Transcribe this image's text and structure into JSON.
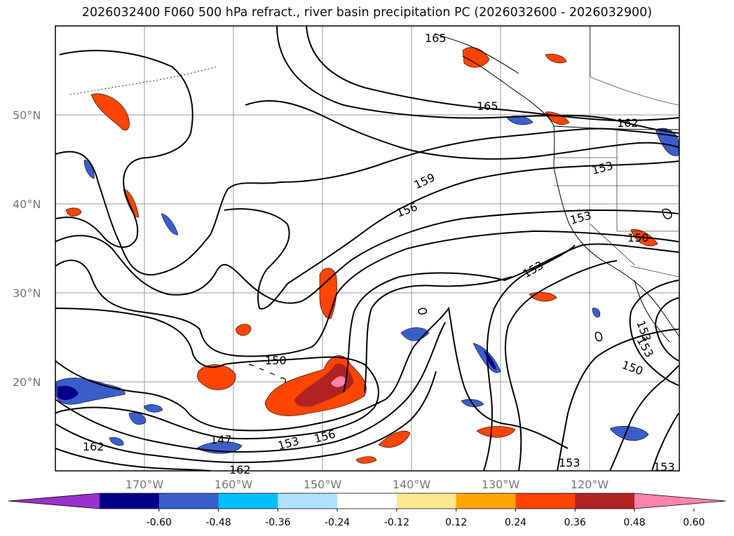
{
  "title": "2026032400 F060 500 hPa refract., river basin precipitation PC (2026032600 - 2026032900)",
  "map": {
    "lat_labels": [
      "50°N",
      "40°N",
      "30°N",
      "20°N"
    ],
    "lon_labels": [
      "170°W",
      "160°W",
      "150°W",
      "140°W",
      "130°W",
      "120°W"
    ],
    "grid": true,
    "contour_color": "#000000",
    "contour_labels": [
      "165",
      "165",
      "162",
      "159",
      "156",
      "153",
      "153",
      "150",
      "153",
      "153",
      "153",
      "150",
      "150",
      "147",
      "153",
      "156",
      "162",
      "162",
      "153",
      "153"
    ]
  },
  "colorbar": {
    "colors": [
      "#9932cc",
      "#00008b",
      "#3a5fcd",
      "#00bfff",
      "#b0e2ff",
      "#ffffff",
      "#ffe88f",
      "#ffa500",
      "#ff4500",
      "#b22222",
      "#ff83ac"
    ],
    "tick_labels": [
      "-0.60",
      "-0.48",
      "-0.36",
      "-0.24",
      "-0.12",
      "0.12",
      "0.24",
      "0.36",
      "0.48",
      "0.60"
    ],
    "extend": "both"
  }
}
